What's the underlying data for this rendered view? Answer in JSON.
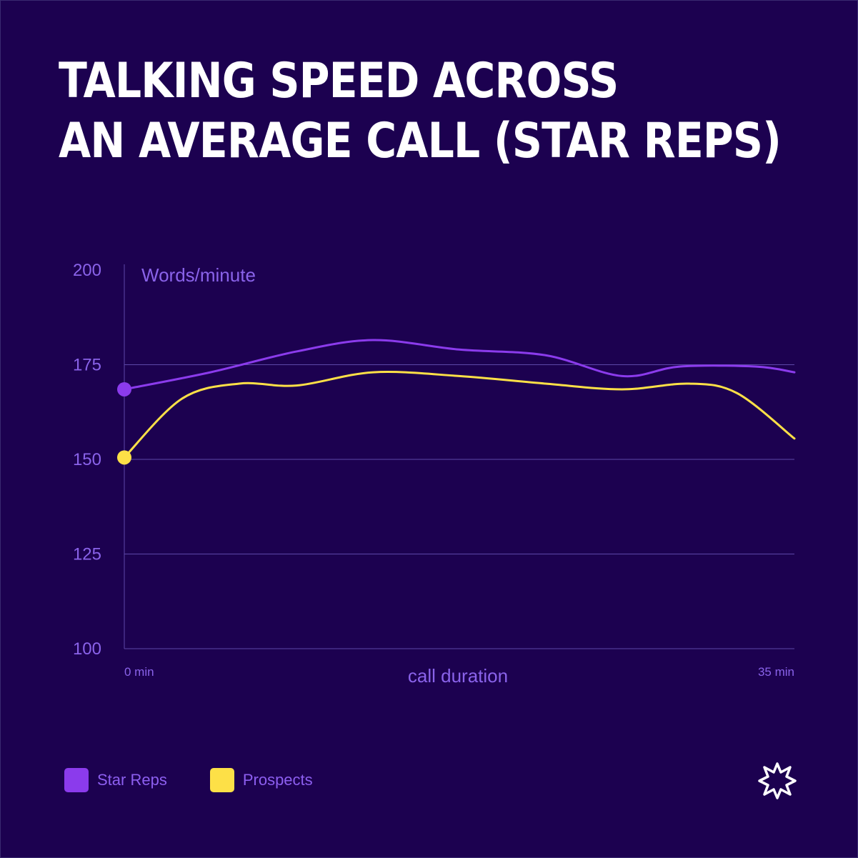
{
  "title": {
    "line1": "Talking speed across",
    "line2": "an average call (star reps)"
  },
  "colors": {
    "background": "#1c0150",
    "axis": "#5d47a8",
    "tick_label": "#8a63ea",
    "star_reps": "#8b3bec",
    "prospects": "#fde047"
  },
  "logo_icon": "starburst-icon",
  "chart_data": {
    "type": "line",
    "ylabel": "Words/minute",
    "xlabel": "call duration",
    "x_tick_labels": [
      "0 min",
      "35 min"
    ],
    "xlim": [
      0,
      35
    ],
    "ylim": [
      100,
      200
    ],
    "y_ticks": [
      100,
      125,
      150,
      175,
      200
    ],
    "grid": true,
    "legend_position": "bottom-left",
    "series": [
      {
        "name": "Star Reps",
        "color": "#8b3bec",
        "x": [
          0,
          4.5,
          9,
          13,
          17.5,
          22,
          26,
          29,
          33,
          35
        ],
        "y": [
          168.5,
          173,
          178.5,
          181.5,
          179,
          177.5,
          172,
          174.5,
          174.5,
          173
        ]
      },
      {
        "name": "Prospects",
        "color": "#fde047",
        "x": [
          0,
          3,
          6,
          9,
          13,
          17.5,
          22,
          26,
          29.5,
          32,
          35
        ],
        "y": [
          150.5,
          166,
          170,
          169.5,
          173,
          172,
          170,
          168.5,
          170,
          167.5,
          155.5
        ]
      }
    ]
  }
}
